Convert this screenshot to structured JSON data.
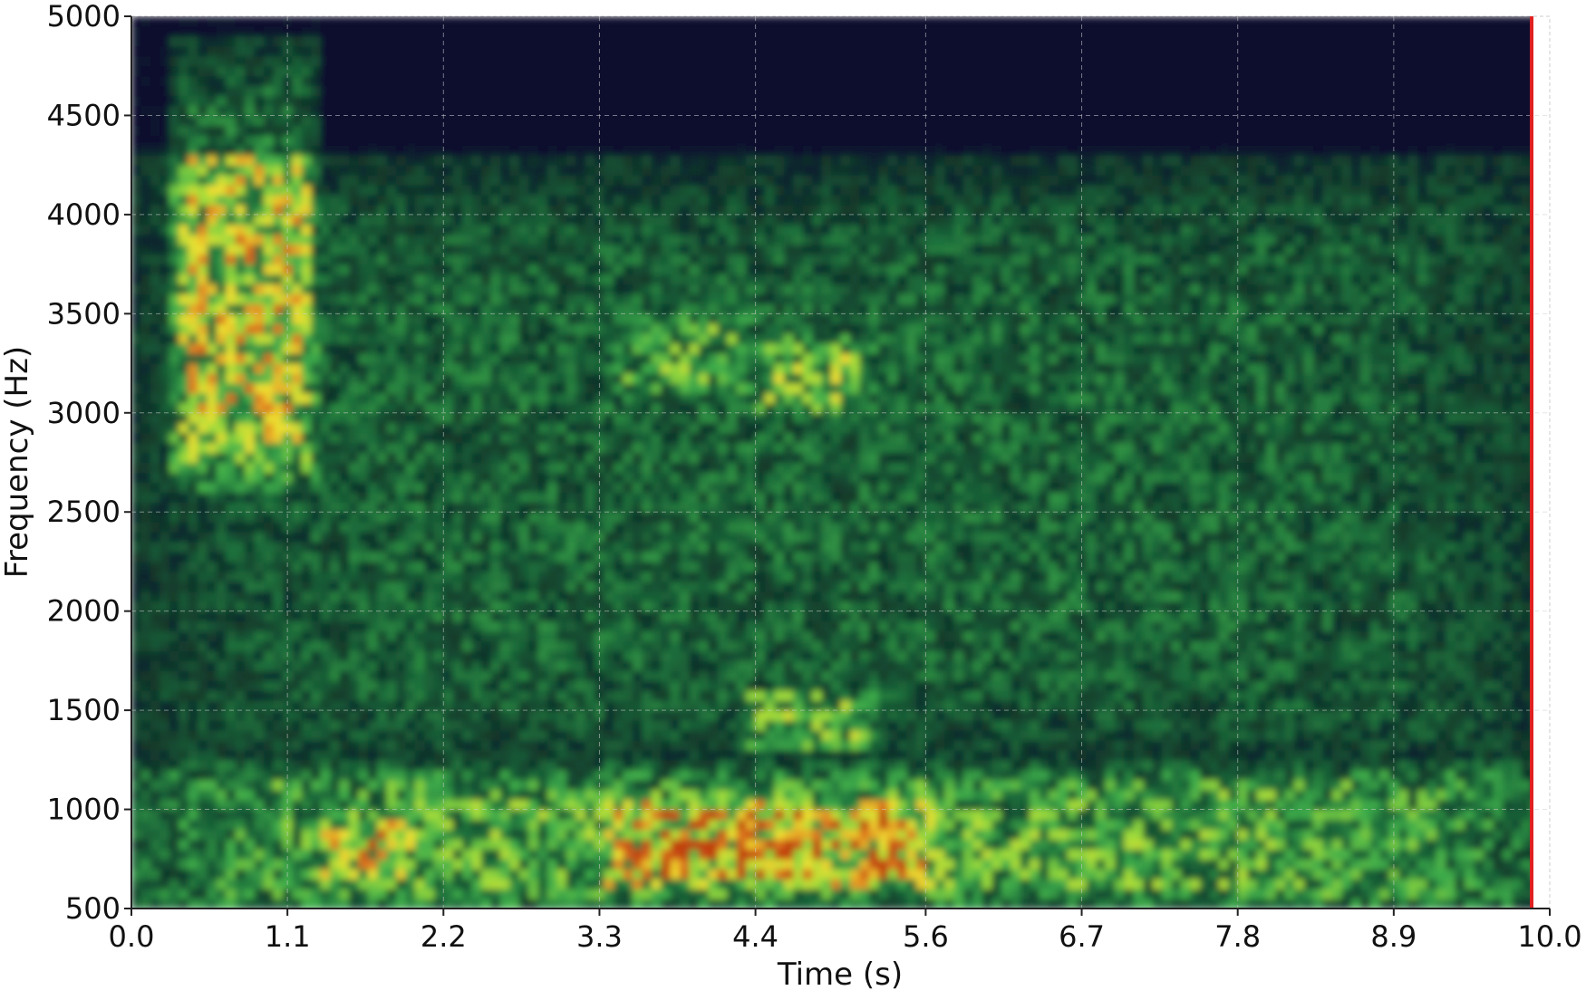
{
  "chart_data": {
    "type": "heatmap",
    "title": "",
    "xlabel": "Time (s)",
    "ylabel": "Frequency (Hz)",
    "xlim": [
      0.0,
      10.0
    ],
    "ylim": [
      500,
      5000
    ],
    "x_ticks": [
      "0.0",
      "1.1",
      "2.2",
      "3.3",
      "4.4",
      "5.6",
      "6.7",
      "7.8",
      "8.9",
      "10.0"
    ],
    "y_ticks": [
      "500",
      "1000",
      "1500",
      "2000",
      "2500",
      "3000",
      "3500",
      "4000",
      "4500",
      "5000"
    ],
    "colormap": [
      "#0b0b2e",
      "#123a2c",
      "#1c6b3a",
      "#3fae4a",
      "#9fdc3a",
      "#f0e030",
      "#e07a20",
      "#c04010"
    ],
    "grid": true,
    "energy_regions": [
      {
        "t_start": 0.3,
        "t_end": 1.3,
        "f_low": 2700,
        "f_high": 4800,
        "level": 0.75
      },
      {
        "t_start": 0.0,
        "t_end": 10.0,
        "f_low": 500,
        "f_high": 1200,
        "level": 0.5
      },
      {
        "t_start": 1.3,
        "t_end": 2.0,
        "f_low": 650,
        "f_high": 950,
        "level": 0.8
      },
      {
        "t_start": 3.3,
        "t_end": 5.7,
        "f_low": 600,
        "f_high": 1050,
        "level": 0.95
      },
      {
        "t_start": 4.4,
        "t_end": 5.2,
        "f_low": 3000,
        "f_high": 3400,
        "level": 0.6
      },
      {
        "t_start": 3.4,
        "t_end": 4.4,
        "f_low": 3100,
        "f_high": 3500,
        "level": 0.5
      },
      {
        "t_start": 4.3,
        "t_end": 5.3,
        "f_low": 1300,
        "f_high": 1600,
        "level": 0.55
      },
      {
        "t_start": 0.0,
        "t_end": 10.0,
        "f_low": 1200,
        "f_high": 4200,
        "level": 0.3
      }
    ]
  }
}
